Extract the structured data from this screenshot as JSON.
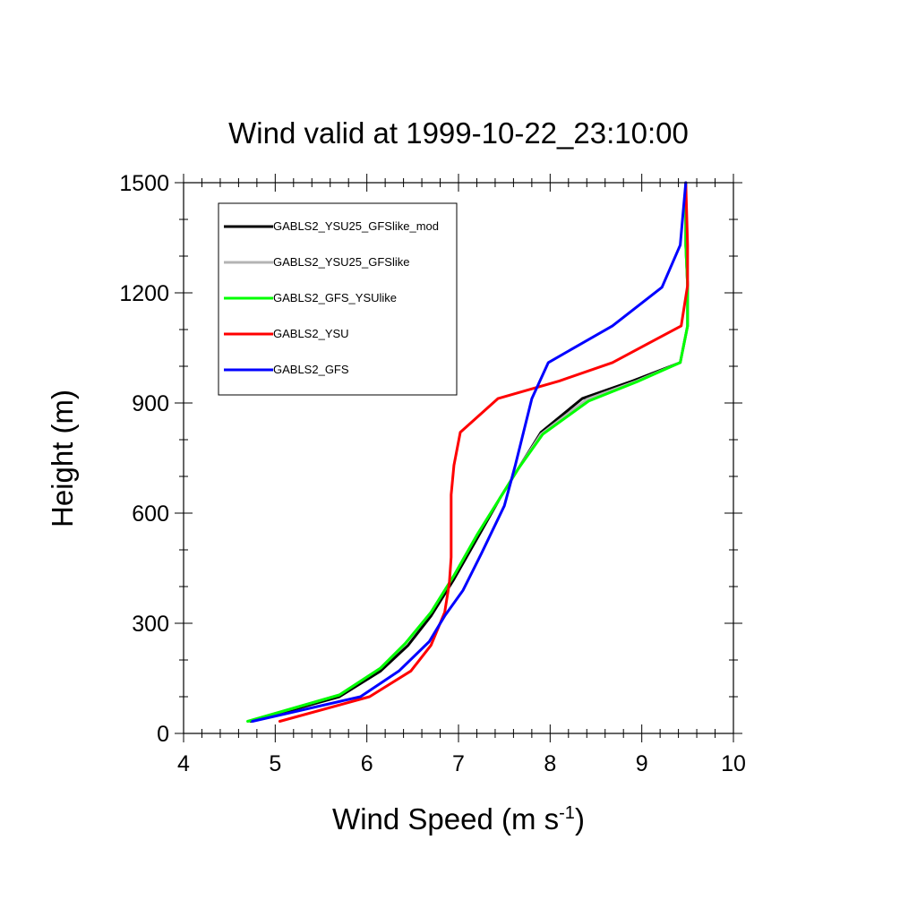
{
  "chart_data": {
    "type": "line",
    "title": "Wind valid at 1999-10-22_23:10:00",
    "xlabel": "Wind Speed (m s",
    "xlabel_sup": "-1",
    "xlabel_tail": ")",
    "ylabel": "Height (m)",
    "xlim": [
      4,
      10
    ],
    "ylim": [
      0,
      1500
    ],
    "xticks": [
      4,
      5,
      6,
      7,
      8,
      9,
      10
    ],
    "yticks": [
      0,
      300,
      600,
      900,
      1200,
      1500
    ],
    "x_minor_step": 0.2,
    "y_minor_step": 100,
    "grid": false,
    "legend_position": "top-left",
    "series": [
      {
        "name": "GABLS2_YSU25_GFSlike_mod",
        "color": "#000000",
        "points": [
          [
            4.73,
            33
          ],
          [
            5.7,
            100
          ],
          [
            6.15,
            170
          ],
          [
            6.45,
            240
          ],
          [
            6.7,
            320
          ],
          [
            6.95,
            420
          ],
          [
            7.2,
            530
          ],
          [
            7.45,
            640
          ],
          [
            7.65,
            720
          ],
          [
            7.9,
            820
          ],
          [
            8.35,
            912
          ],
          [
            8.9,
            960
          ],
          [
            9.42,
            1010
          ],
          [
            9.5,
            1110
          ],
          [
            9.5,
            1220
          ],
          [
            9.48,
            1330
          ],
          [
            9.48,
            1500
          ]
        ]
      },
      {
        "name": "GABLS2_YSU25_GFSlike",
        "color": "#b4b4b4",
        "points": [
          [
            4.7,
            33
          ],
          [
            5.7,
            105
          ],
          [
            6.15,
            178
          ],
          [
            6.42,
            245
          ],
          [
            6.7,
            330
          ],
          [
            6.95,
            430
          ],
          [
            7.2,
            540
          ],
          [
            7.45,
            640
          ],
          [
            7.65,
            720
          ],
          [
            7.9,
            815
          ],
          [
            8.4,
            910
          ],
          [
            8.95,
            960
          ],
          [
            9.42,
            1010
          ],
          [
            9.5,
            1110
          ],
          [
            9.5,
            1220
          ],
          [
            9.48,
            1330
          ],
          [
            9.48,
            1500
          ]
        ]
      },
      {
        "name": "GABLS2_GFS_YSUlike",
        "color": "#00ff00",
        "points": [
          [
            4.7,
            33
          ],
          [
            5.7,
            105
          ],
          [
            6.15,
            178
          ],
          [
            6.42,
            245
          ],
          [
            6.7,
            330
          ],
          [
            6.95,
            430
          ],
          [
            7.2,
            540
          ],
          [
            7.45,
            640
          ],
          [
            7.65,
            720
          ],
          [
            7.92,
            815
          ],
          [
            8.42,
            905
          ],
          [
            8.95,
            958
          ],
          [
            9.42,
            1010
          ],
          [
            9.5,
            1110
          ],
          [
            9.5,
            1220
          ],
          [
            9.48,
            1330
          ],
          [
            9.48,
            1500
          ]
        ]
      },
      {
        "name": "GABLS2_YSU",
        "color": "#ff0000",
        "points": [
          [
            5.05,
            33
          ],
          [
            6.03,
            100
          ],
          [
            6.48,
            170
          ],
          [
            6.7,
            240
          ],
          [
            6.85,
            330
          ],
          [
            6.9,
            410
          ],
          [
            6.92,
            480
          ],
          [
            6.92,
            650
          ],
          [
            6.95,
            730
          ],
          [
            7.02,
            820
          ],
          [
            7.43,
            912
          ],
          [
            8.1,
            960
          ],
          [
            8.68,
            1010
          ],
          [
            9.43,
            1110
          ],
          [
            9.5,
            1220
          ],
          [
            9.5,
            1330
          ],
          [
            9.48,
            1500
          ]
        ]
      },
      {
        "name": "GABLS2_GFS",
        "color": "#0000ff",
        "points": [
          [
            4.75,
            33
          ],
          [
            5.93,
            100
          ],
          [
            6.35,
            170
          ],
          [
            6.68,
            250
          ],
          [
            6.85,
            320
          ],
          [
            7.05,
            390
          ],
          [
            7.25,
            490
          ],
          [
            7.5,
            620
          ],
          [
            7.62,
            730
          ],
          [
            7.8,
            912
          ],
          [
            7.98,
            1010
          ],
          [
            8.68,
            1110
          ],
          [
            9.22,
            1215
          ],
          [
            9.42,
            1330
          ],
          [
            9.48,
            1500
          ]
        ]
      }
    ]
  }
}
